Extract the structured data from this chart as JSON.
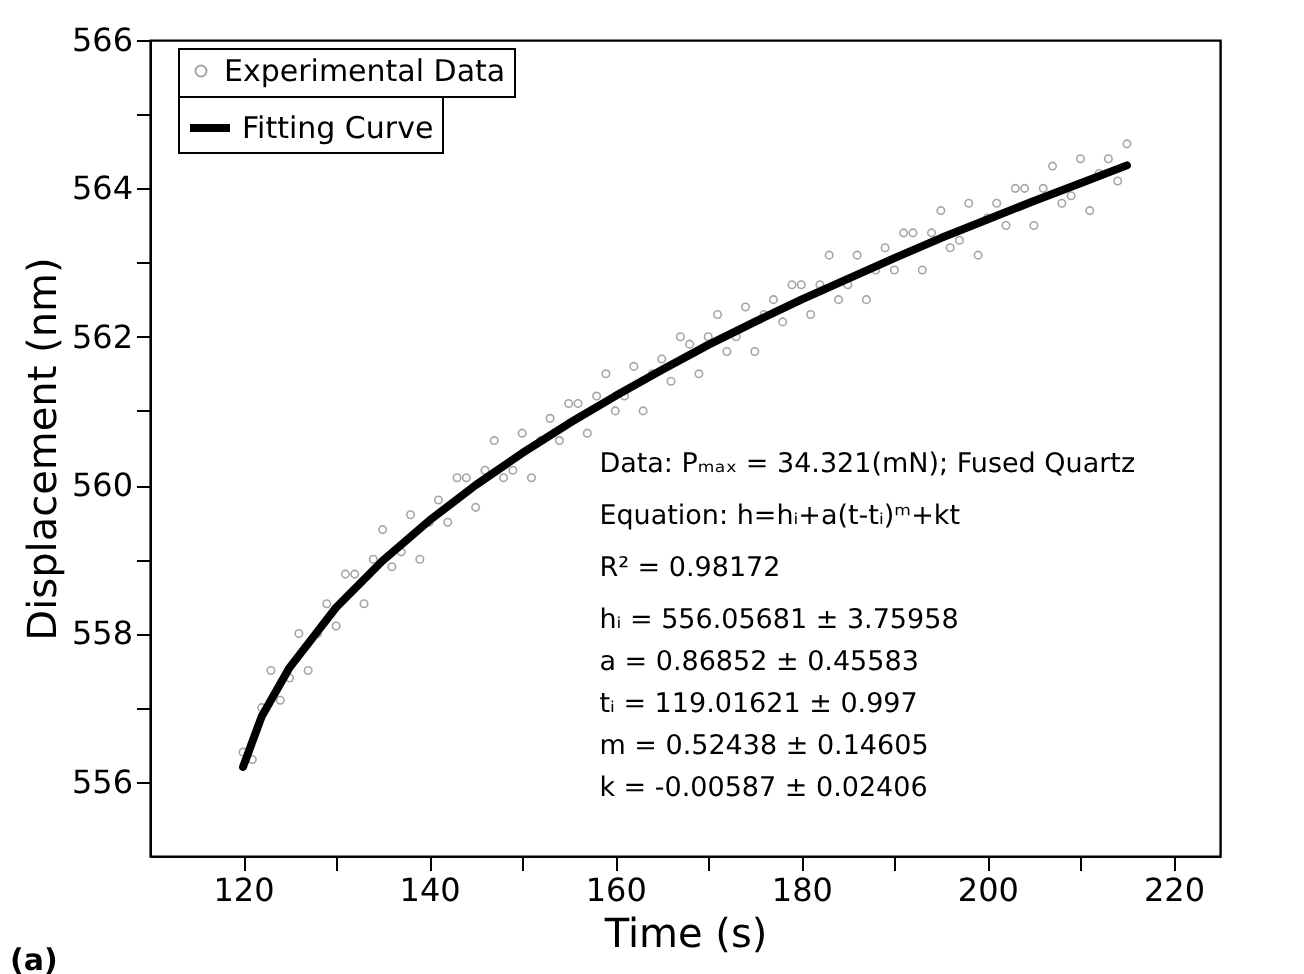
{
  "chart_data": {
    "type": "scatter",
    "xlabel": "Time (s)",
    "ylabel": "Displacement (nm)",
    "xlim": [
      110,
      225
    ],
    "ylim": [
      555,
      566
    ],
    "xticks": [
      120,
      {
        "value": 130,
        "label": null
      },
      140,
      {
        "value": 150,
        "label": null
      },
      160,
      {
        "value": 170,
        "label": null
      },
      180,
      {
        "value": 190,
        "label": null
      },
      200,
      {
        "value": 210,
        "label": null
      },
      220
    ],
    "yticks": [
      556,
      {
        "value": 557,
        "label": null
      },
      558,
      {
        "value": 559,
        "label": null
      },
      560,
      {
        "value": 561,
        "label": null
      },
      562,
      {
        "value": 563,
        "label": null
      },
      564,
      {
        "value": 565,
        "label": null
      },
      566
    ],
    "grid": false,
    "legend": "top left",
    "series": [
      {
        "name": "Experimental Data",
        "type": "scatter",
        "marker": "circle",
        "color": "#808080",
        "x": [
          120,
          121,
          122,
          123,
          124,
          125,
          126,
          127,
          128,
          129,
          130,
          131,
          132,
          133,
          134,
          135,
          136,
          137,
          138,
          139,
          140,
          141,
          142,
          143,
          144,
          145,
          146,
          147,
          148,
          149,
          150,
          151,
          152,
          153,
          154,
          155,
          156,
          157,
          158,
          159,
          160,
          161,
          162,
          163,
          164,
          165,
          166,
          167,
          168,
          169,
          170,
          171,
          172,
          173,
          174,
          175,
          176,
          177,
          178,
          179,
          180,
          181,
          182,
          183,
          184,
          185,
          186,
          187,
          188,
          189,
          190,
          191,
          192,
          193,
          194,
          195,
          196,
          197,
          198,
          199,
          200,
          201,
          202,
          203,
          204,
          205,
          206,
          207,
          208,
          209,
          210,
          211,
          212,
          213,
          214,
          215
        ],
        "values": [
          556.4,
          556.3,
          557.0,
          557.5,
          557.1,
          557.4,
          558.0,
          557.5,
          558.0,
          558.4,
          558.1,
          558.8,
          558.8,
          558.4,
          559.0,
          559.4,
          558.9,
          559.1,
          559.6,
          559.0,
          559.5,
          559.8,
          559.5,
          560.1,
          560.1,
          559.7,
          560.2,
          560.6,
          560.1,
          560.2,
          560.7,
          560.1,
          560.6,
          560.9,
          560.6,
          561.1,
          561.1,
          560.7,
          561.2,
          561.5,
          561.0,
          561.2,
          561.6,
          561.0,
          561.5,
          561.7,
          561.4,
          562.0,
          561.9,
          561.5,
          562.0,
          562.3,
          561.8,
          562.0,
          562.4,
          561.8,
          562.3,
          562.5,
          562.2,
          562.7,
          562.7,
          562.3,
          562.7,
          563.1,
          562.5,
          562.7,
          563.1,
          562.5,
          562.9,
          563.2,
          562.9,
          563.4,
          563.4,
          562.9,
          563.4,
          563.7,
          563.2,
          563.3,
          563.8,
          563.1,
          563.6,
          563.8,
          563.5,
          564.0,
          564.0,
          563.5,
          564.0,
          564.3,
          563.8,
          563.9,
          564.4,
          563.7,
          564.2,
          564.4,
          564.1,
          564.6
        ]
      },
      {
        "name": "Fitting Curve",
        "type": "line",
        "line_style": "solid",
        "marker": "none",
        "color": "#000000",
        "x": [
          120,
          122,
          125,
          130,
          135,
          140,
          145,
          150,
          155,
          160,
          165,
          170,
          175,
          180,
          185,
          190,
          195,
          200,
          205,
          210,
          215
        ],
        "values": [
          556.2,
          556.88,
          557.54,
          558.35,
          558.98,
          559.52,
          560.0,
          560.43,
          560.83,
          561.2,
          561.55,
          561.89,
          562.2,
          562.5,
          562.78,
          563.06,
          563.33,
          563.58,
          563.83,
          564.07,
          564.31
        ]
      }
    ],
    "annotations": [
      "Data:  Pₘₐₓ = 34.321(mN); Fused Quartz",
      "Equation: h=hᵢ+a(t-tᵢ)ᵐ+kt",
      "R² = 0.98172",
      "hᵢ = 556.05681 ± 3.75958",
      "a = 0.86852 ± 0.45583",
      "tᵢ = 119.01621 ± 0.997",
      "m = 0.52438 ± 0.14605",
      "k = -0.00587 ± 0.02406",
      "(a)"
    ]
  }
}
